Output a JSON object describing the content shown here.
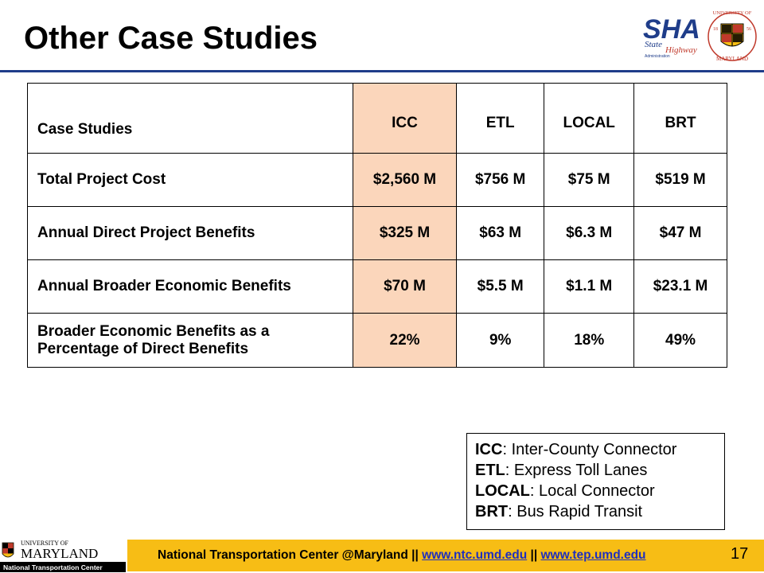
{
  "slide": {
    "title": "Other Case Studies",
    "page_number": "17"
  },
  "logos": {
    "sha": {
      "big": "SHA",
      "sub1": "State",
      "sub2": "Highway",
      "sub3": "Administration"
    },
    "umd": {
      "top": "UNIVERSITY OF",
      "bottom": "MARYLAND",
      "y1": "18",
      "y2": "56"
    }
  },
  "table": {
    "headers": [
      "Case Studies",
      "ICC",
      "ETL",
      "LOCAL",
      "BRT"
    ],
    "rows": [
      {
        "label": "Total Project Cost",
        "values": [
          "$2,560 M",
          "$756 M",
          "$75 M",
          "$519 M"
        ]
      },
      {
        "label": "Annual Direct Project Benefits",
        "values": [
          "$325 M",
          "$63 M",
          "$6.3 M",
          "$47 M"
        ]
      },
      {
        "label": "Annual Broader Economic Benefits",
        "values": [
          "$70 M",
          "$5.5 M",
          "$1.1 M",
          "$23.1 M"
        ]
      },
      {
        "label": "Broader Economic Benefits as a Percentage of Direct Benefits",
        "values": [
          "22%",
          "9%",
          "18%",
          "49%"
        ]
      }
    ],
    "highlight_color": "#fbd6bb"
  },
  "legend": [
    {
      "abbr": "ICC",
      "text": ": Inter-County Connector"
    },
    {
      "abbr": "ETL",
      "text": ": Express Toll Lanes"
    },
    {
      "abbr": "LOCAL",
      "text": ": Local Connector"
    },
    {
      "abbr": "BRT",
      "text": ": Bus Rapid Transit"
    }
  ],
  "footer": {
    "logo_line1": "UNIVERSITY OF",
    "logo_line2": "MARYLAND",
    "logo_line3": "National Transportation Center",
    "org": "National Transportation Center @Maryland",
    "sep": " || ",
    "link1": "www.ntc.umd.edu",
    "link2": "www.tep.umd.edu",
    "bar_color": "#f7bd15"
  }
}
